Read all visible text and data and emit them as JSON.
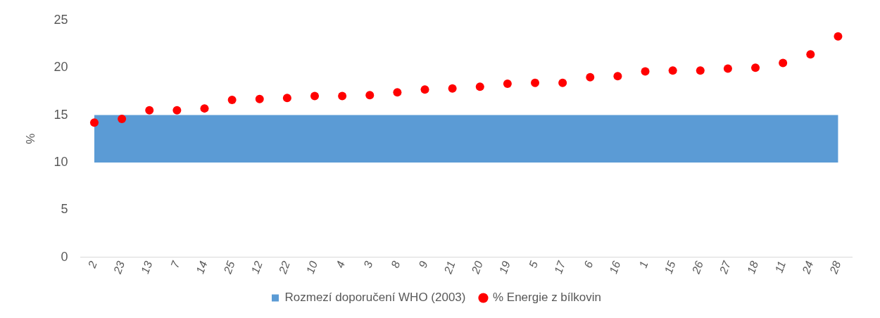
{
  "chart_data": {
    "type": "scatter",
    "ylabel": "%",
    "categories": [
      "2",
      "23",
      "13",
      "7",
      "14",
      "25",
      "12",
      "22",
      "10",
      "4",
      "3",
      "8",
      "9",
      "21",
      "20",
      "19",
      "5",
      "17",
      "6",
      "16",
      "1",
      "15",
      "26",
      "27",
      "18",
      "11",
      "24",
      "28"
    ],
    "series": [
      {
        "name": "% Energie z bílkovin",
        "color": "#ff0000",
        "values": [
          14.2,
          14.6,
          15.5,
          15.5,
          15.7,
          16.6,
          16.7,
          16.8,
          17.0,
          17.0,
          17.1,
          17.4,
          17.7,
          17.8,
          18.0,
          18.3,
          18.4,
          18.4,
          19.0,
          19.1,
          19.6,
          19.7,
          19.7,
          19.9,
          20.0,
          20.5,
          21.4,
          23.3
        ]
      }
    ],
    "bands": [
      {
        "axis": "y",
        "from": 10,
        "to": 15,
        "label": "Rozmezí doporučení WHO (2003)",
        "color": "#5b9bd5"
      }
    ],
    "ylim": [
      0,
      25
    ],
    "yticks": [
      0,
      5,
      10,
      15,
      20,
      25
    ],
    "grid": false,
    "legend": "bottom",
    "marker": "circle"
  }
}
